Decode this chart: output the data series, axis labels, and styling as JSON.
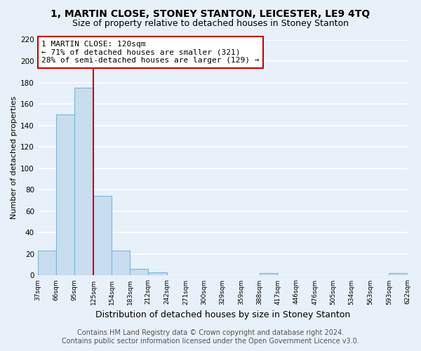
{
  "title": "1, MARTIN CLOSE, STONEY STANTON, LEICESTER, LE9 4TQ",
  "subtitle": "Size of property relative to detached houses in Stoney Stanton",
  "xlabel": "Distribution of detached houses by size in Stoney Stanton",
  "ylabel": "Number of detached properties",
  "bin_edges": [
    37,
    66,
    95,
    125,
    154,
    183,
    212,
    242,
    271,
    300,
    329,
    359,
    388,
    417,
    446,
    476,
    505,
    534,
    563,
    593,
    622
  ],
  "bar_heights": [
    23,
    150,
    175,
    74,
    23,
    6,
    3,
    0,
    0,
    0,
    0,
    0,
    2,
    0,
    0,
    0,
    0,
    0,
    0,
    2
  ],
  "bar_color": "#c8ddf0",
  "bar_edge_color": "#7eb5d6",
  "property_line_x": 125,
  "property_line_color": "#cc0000",
  "annotation_text": "1 MARTIN CLOSE: 120sqm\n← 71% of detached houses are smaller (321)\n28% of semi-detached houses are larger (129) →",
  "annotation_box_color": "white",
  "annotation_box_edge": "#cc0000",
  "ylim": [
    0,
    220
  ],
  "yticks": [
    0,
    20,
    40,
    60,
    80,
    100,
    120,
    140,
    160,
    180,
    200,
    220
  ],
  "x_tick_labels": [
    "37sqm",
    "66sqm",
    "95sqm",
    "125sqm",
    "154sqm",
    "183sqm",
    "212sqm",
    "242sqm",
    "271sqm",
    "300sqm",
    "329sqm",
    "359sqm",
    "388sqm",
    "417sqm",
    "446sqm",
    "476sqm",
    "505sqm",
    "534sqm",
    "563sqm",
    "593sqm",
    "622sqm"
  ],
  "footer_line1": "Contains HM Land Registry data © Crown copyright and database right 2024.",
  "footer_line2": "Contains public sector information licensed under the Open Government Licence v3.0.",
  "background_color": "#e8f0fa",
  "plot_bg_color": "#e8f0fa",
  "grid_color": "white",
  "title_fontsize": 10,
  "subtitle_fontsize": 9,
  "xlabel_fontsize": 9,
  "ylabel_fontsize": 8,
  "annotation_fontsize": 8,
  "footer_fontsize": 7
}
